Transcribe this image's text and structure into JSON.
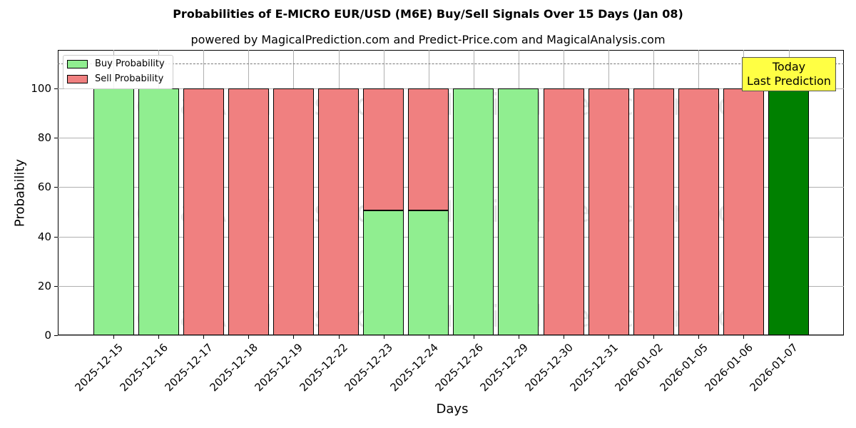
{
  "chart_data": {
    "type": "bar",
    "title": "Probabilities of E-MICRO EUR/USD (M6E) Buy/Sell Signals Over 15 Days (Jan 08)",
    "subtitle": "powered by MagicalPrediction.com and Predict-Price.com and MagicalAnalysis.com",
    "xlabel": "Days",
    "ylabel": "Probability",
    "ylim": [
      0,
      115
    ],
    "yticks": [
      0,
      20,
      40,
      60,
      80,
      100
    ],
    "categories": [
      "2025-12-15",
      "2025-12-16",
      "2025-12-17",
      "2025-12-18",
      "2025-12-19",
      "2025-12-22",
      "2025-12-23",
      "2025-12-24",
      "2025-12-26",
      "2025-12-29",
      "2025-12-30",
      "2025-12-31",
      "2026-01-02",
      "2026-01-05",
      "2026-01-06",
      "2026-01-07"
    ],
    "series": [
      {
        "name": "Buy Probability",
        "color": "#90ee90",
        "values": [
          100,
          100,
          0,
          0,
          0,
          0,
          50.7,
          50.7,
          100,
          100,
          0,
          0,
          0,
          0,
          0,
          100
        ]
      },
      {
        "name": "Sell Probability",
        "color": "#f08080",
        "values": [
          0,
          0,
          100,
          100,
          100,
          100,
          49.3,
          49.3,
          0,
          0,
          100,
          100,
          100,
          100,
          100,
          0
        ]
      }
    ],
    "highlight": {
      "index": 15,
      "color": "#008000"
    },
    "reference_line": {
      "y": 110,
      "style": "dashed"
    },
    "annotation": "Today\nLast Prediction",
    "legend_position": "upper left",
    "grid": true,
    "watermarks": [
      "MagicalAnalysis.com",
      "MagicalPrediction.com"
    ]
  }
}
